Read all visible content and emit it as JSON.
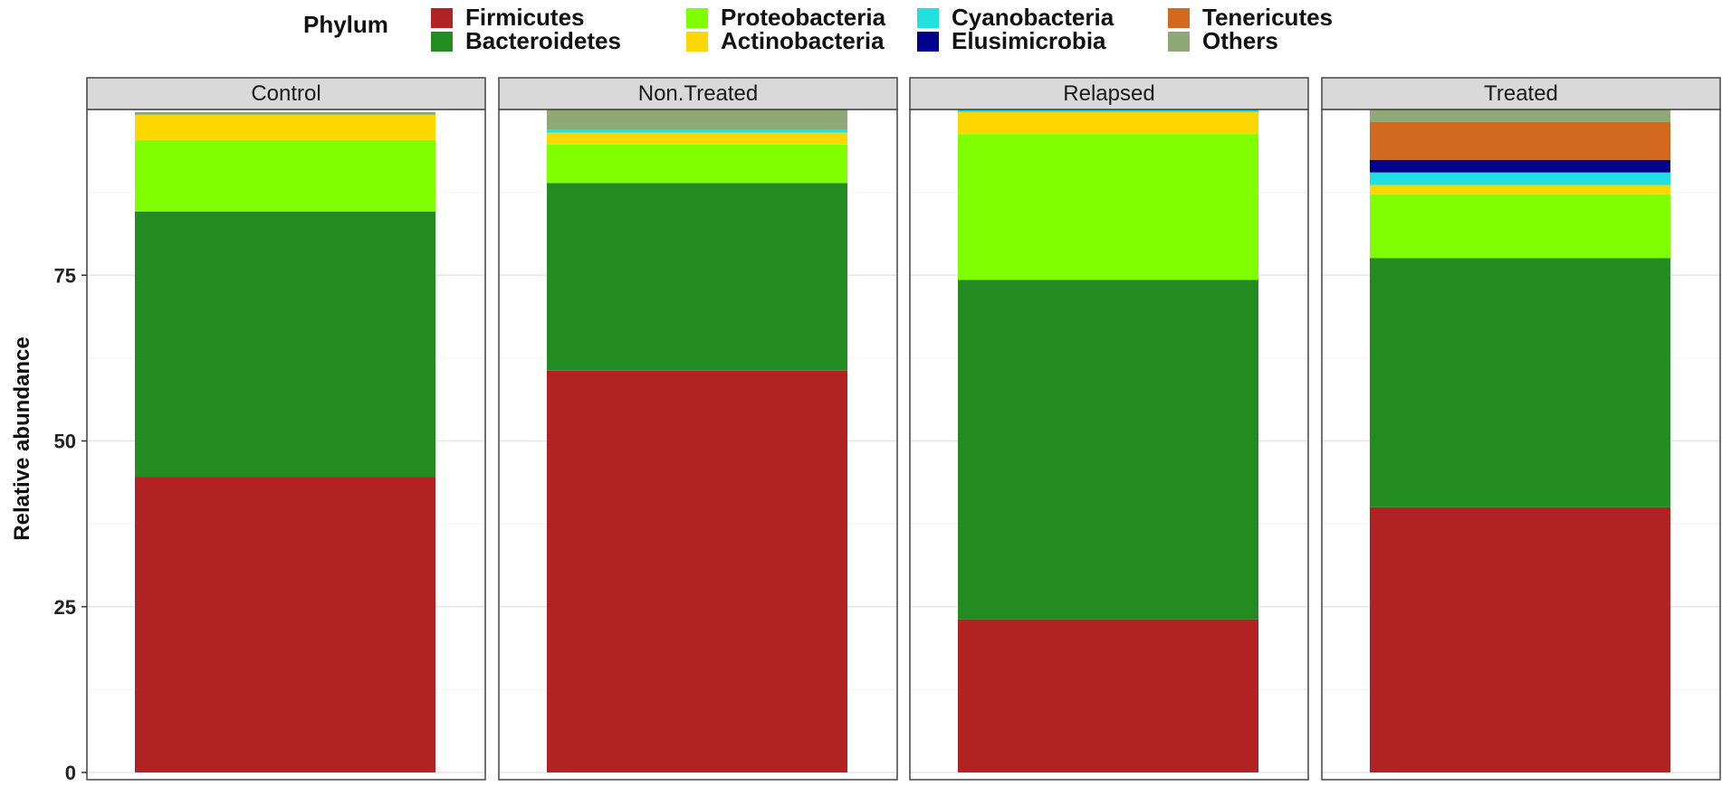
{
  "chart_data": {
    "type": "bar",
    "stacked": true,
    "facets": [
      "Control",
      "Non.Treated",
      "Relapsed",
      "Treated"
    ],
    "legend": {
      "title": "Phylum",
      "placement": "top"
    },
    "ylabel": "Relative abundance",
    "xlabel": "",
    "ylim": [
      0,
      100
    ],
    "yticks": [
      0,
      25,
      50,
      75
    ],
    "grid": true,
    "series": [
      {
        "name": "Firmicutes",
        "color": "#b22222",
        "values": [
          44.6,
          60.6,
          23.1,
          40.0
        ]
      },
      {
        "name": "Bacteroidetes",
        "color": "#228b22",
        "values": [
          40.0,
          28.3,
          51.2,
          37.6
        ]
      },
      {
        "name": "Proteobacteria",
        "color": "#7fff00",
        "values": [
          10.8,
          5.8,
          22.0,
          9.6
        ]
      },
      {
        "name": "Actinobacteria",
        "color": "#ffd700",
        "values": [
          3.8,
          1.8,
          3.3,
          1.4
        ]
      },
      {
        "name": "Cyanobacteria",
        "color": "#20e0e0",
        "values": [
          0.0,
          0.5,
          0.4,
          1.9
        ]
      },
      {
        "name": "Elusimicrobia",
        "color": "#00008b",
        "values": [
          0.0,
          0.0,
          0.0,
          1.9
        ]
      },
      {
        "name": "Tenericutes",
        "color": "#d2691e",
        "values": [
          0.0,
          0.0,
          0.0,
          5.7
        ]
      },
      {
        "name": "Others",
        "color": "#8fa876",
        "values": [
          0.4,
          3.0,
          0.0,
          1.9
        ]
      }
    ]
  }
}
